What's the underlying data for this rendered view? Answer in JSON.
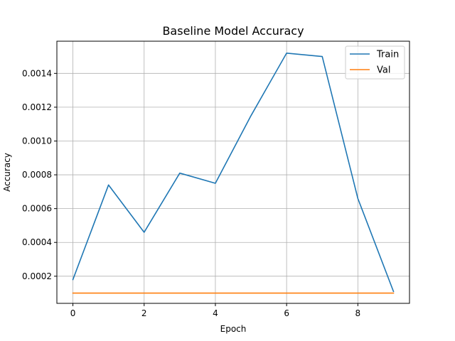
{
  "chart_data": {
    "type": "line",
    "title": "Baseline Model Accuracy",
    "xlabel": "Epoch",
    "ylabel": "Accuracy",
    "x": [
      0,
      1,
      2,
      3,
      4,
      5,
      6,
      7,
      8,
      9
    ],
    "series": [
      {
        "name": "Train",
        "color": "#1f77b4",
        "values": [
          0.00018,
          0.00074,
          0.00046,
          0.00081,
          0.00075,
          0.00115,
          0.00152,
          0.0015,
          0.00066,
          0.00011
        ]
      },
      {
        "name": "Val",
        "color": "#ff7f0e",
        "values": [
          0.0001,
          0.0001,
          0.0001,
          0.0001,
          0.0001,
          0.0001,
          0.0001,
          0.0001,
          0.0001,
          0.0001
        ]
      }
    ],
    "xlim": [
      -0.45,
      9.45
    ],
    "ylim": [
      3.95e-05,
      0.0015905
    ],
    "x_ticks": [
      0,
      2,
      4,
      6,
      8
    ],
    "x_tick_labels": [
      "0",
      "2",
      "4",
      "6",
      "8"
    ],
    "y_ticks": [
      0.0002,
      0.0004,
      0.0006,
      0.0008,
      0.001,
      0.0012,
      0.0014
    ],
    "y_tick_labels": [
      "0.0002",
      "0.0004",
      "0.0006",
      "0.0008",
      "0.0010",
      "0.0012",
      "0.0014"
    ],
    "grid": true,
    "legend_position": "top-right"
  }
}
